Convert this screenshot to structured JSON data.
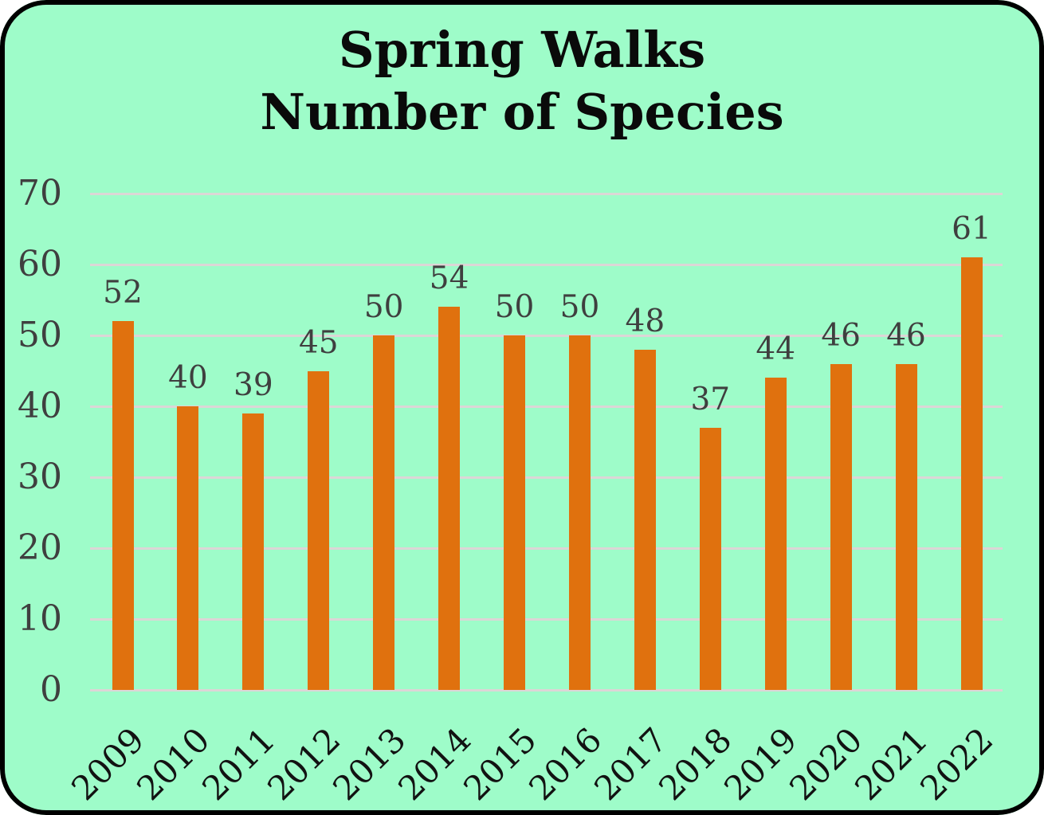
{
  "chart_data": {
    "type": "bar",
    "title": "Spring Walks\nNumber of Species",
    "title_lines": [
      "Spring Walks",
      "Number of Species"
    ],
    "categories": [
      "2009",
      "2010",
      "2011",
      "2012",
      "2013",
      "2014",
      "2015",
      "2016",
      "2017",
      "2018",
      "2019",
      "2020",
      "2021",
      "2022"
    ],
    "values": [
      52,
      40,
      39,
      45,
      50,
      54,
      50,
      50,
      48,
      37,
      44,
      46,
      46,
      61
    ],
    "xlabel": "",
    "ylabel": "",
    "ylim": [
      0,
      70
    ],
    "yticks": [
      0,
      10,
      20,
      30,
      40,
      50,
      60,
      70
    ],
    "grid": true,
    "legend": false,
    "data_labels_shown": true,
    "colors": {
      "page_background": "#FFFFFF",
      "card_background": "#9EFCC9",
      "card_border": "#000000",
      "bar": "#E0710E",
      "gridline": "#DCD6D6",
      "ytick_label": "#3F3F3F",
      "value_label": "#3F3F3F",
      "xtick_label": "#121212",
      "title": "#0A0A0A"
    }
  }
}
